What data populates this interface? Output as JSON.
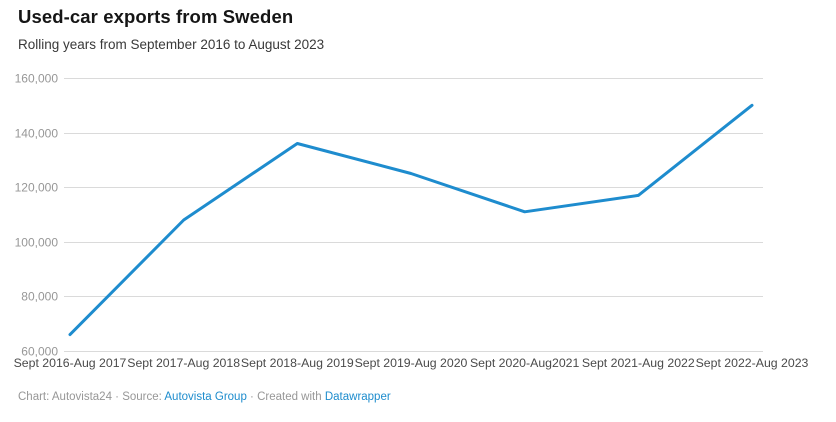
{
  "header": {
    "title": "Used-car exports from Sweden",
    "subtitle": "Rolling years from September 2016 to August 2023"
  },
  "chart_data": {
    "type": "line",
    "categories": [
      "Sept 2016-Aug 2017",
      "Sept 2017-Aug 2018",
      "Sept 2018-Aug 2019",
      "Sept 2019-Aug 2020",
      "Sept 2020-Aug2021",
      "Sept 2021-Aug 2022",
      "Sept 2022-Aug 2023"
    ],
    "values": [
      66000,
      108000,
      136000,
      125000,
      111000,
      117000,
      150000
    ],
    "title": "Used-car exports from Sweden",
    "subtitle": "Rolling years from September 2016 to August 2023",
    "xlabel": "",
    "ylabel": "",
    "ylim": [
      60000,
      160000
    ],
    "yticks": [
      60000,
      80000,
      100000,
      120000,
      140000,
      160000
    ],
    "ytick_labels": [
      "60,000",
      "80,000",
      "100,000",
      "120,000",
      "140,000",
      "160,000"
    ],
    "grid": true,
    "legend": false
  },
  "footer": {
    "prefix": "Chart: Autovista24 · Source: ",
    "source_link": "Autovista Group",
    "middle": " · Created with ",
    "tool_link": "Datawrapper"
  },
  "colors": {
    "line": "#1e8cce",
    "link": "#1d8ccd",
    "grid": "#dadada",
    "y_label": "#979797",
    "x_label": "#4a4a4a"
  }
}
